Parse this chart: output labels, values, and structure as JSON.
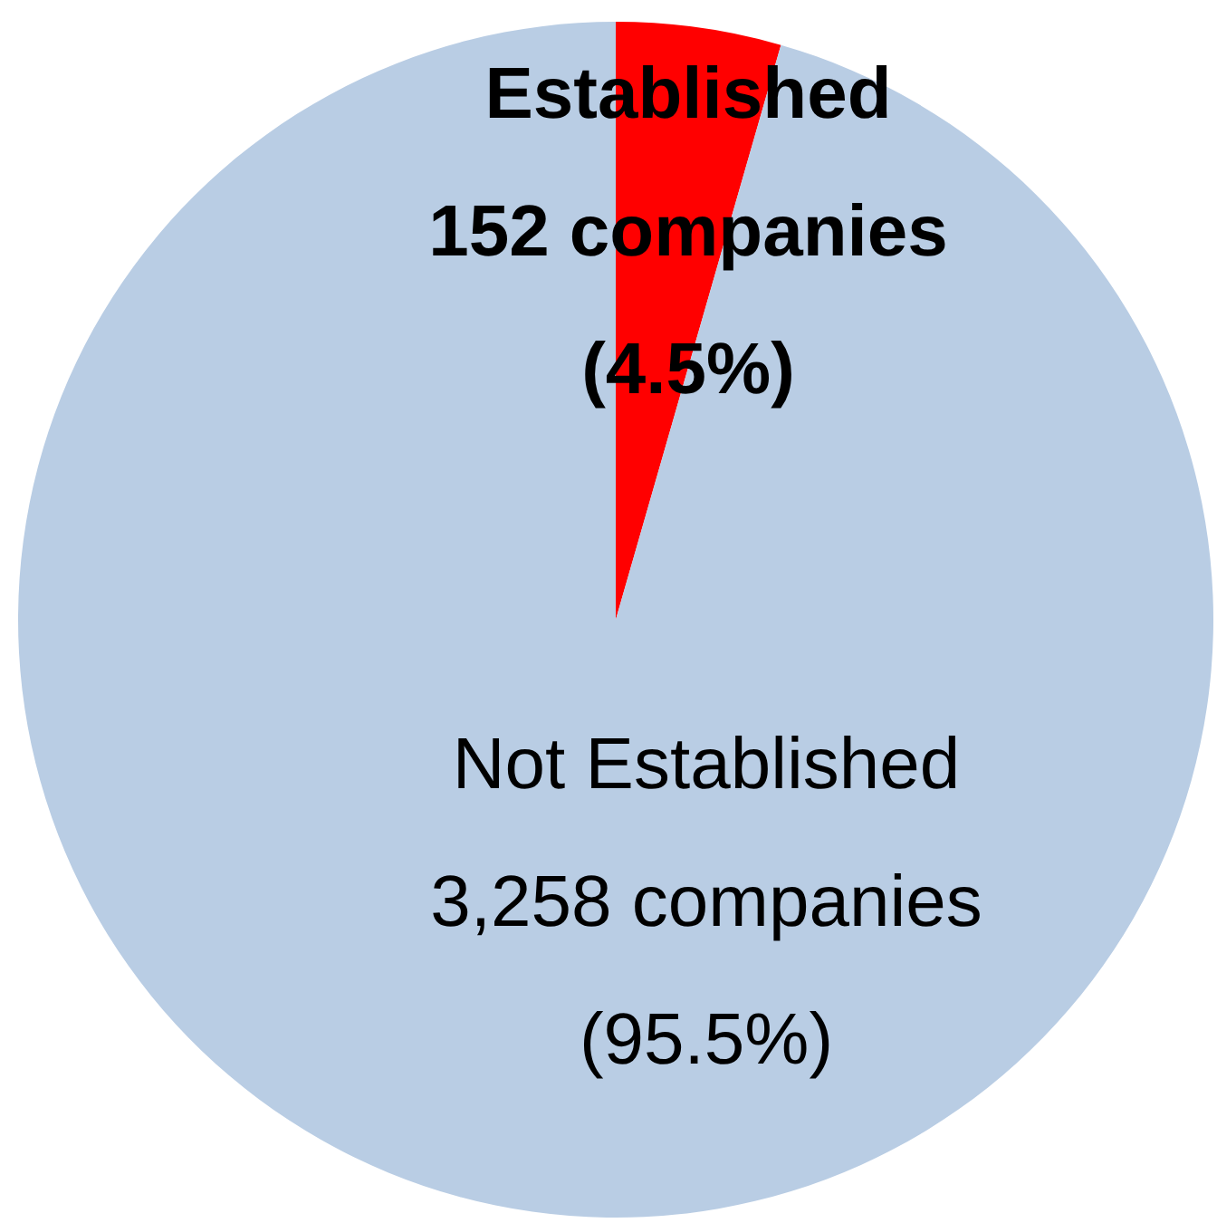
{
  "chart_data": {
    "type": "pie",
    "categories": [
      "Established",
      "Not Established"
    ],
    "values": [
      152,
      3258
    ],
    "value_labels": [
      "152 companies\n(4.5%)",
      "3,258 companies\n(95.5%)"
    ],
    "colors": [
      "#ff0000",
      "#b9cde4"
    ]
  }
}
